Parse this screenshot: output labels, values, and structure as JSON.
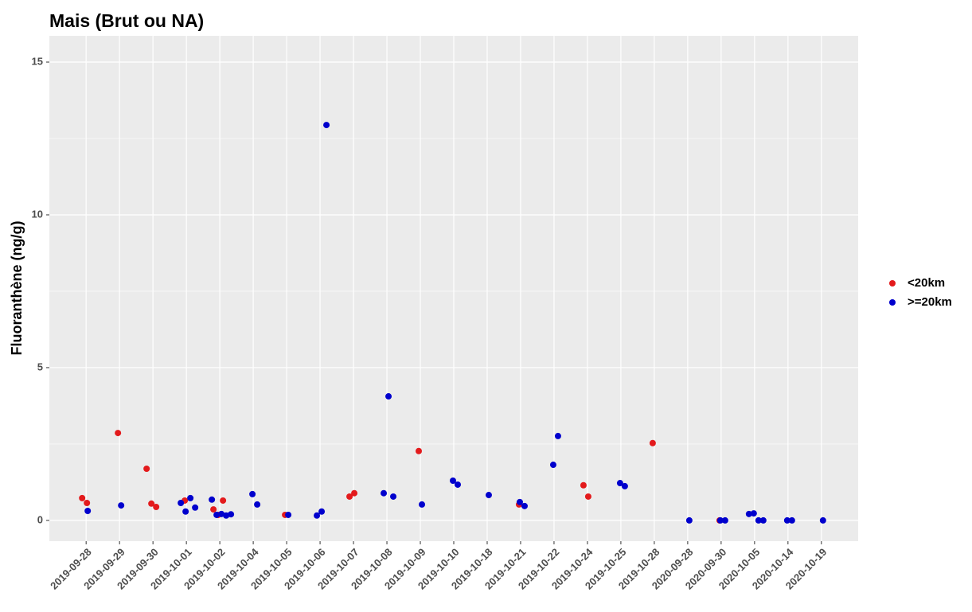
{
  "chart_data": {
    "type": "scatter",
    "title": "Mais (Brut ou NA)",
    "y_label": "Fluoranthène (ng/g)",
    "categories": [
      "2019-09-28",
      "2019-09-29",
      "2019-09-30",
      "2019-10-01",
      "2019-10-02",
      "2019-10-04",
      "2019-10-05",
      "2019-10-06",
      "2019-10-07",
      "2019-10-08",
      "2019-10-09",
      "2019-10-10",
      "2019-10-18",
      "2019-10-21",
      "2019-10-22",
      "2019-10-24",
      "2019-10-25",
      "2019-10-28",
      "2020-09-28",
      "2020-09-30",
      "2020-10-05",
      "2020-10-14",
      "2020-10-19"
    ],
    "ylim": [
      -0.68,
      15.86
    ],
    "yticks": [
      0,
      5,
      10,
      15
    ],
    "grid": true,
    "legend": "right",
    "series": [
      {
        "name": "<20km",
        "color": "#e31a1c",
        "x": [
          "2019-09-28",
          "2019-09-28",
          "2019-09-29",
          "2019-09-30",
          "2019-09-30",
          "2019-09-30",
          "2019-10-01",
          "2019-10-02",
          "2019-10-02",
          "2019-10-02",
          "2019-10-05",
          "2019-10-07",
          "2019-10-07",
          "2019-10-09",
          "2019-10-21",
          "2019-10-24",
          "2019-10-24",
          "2019-10-28",
          "2020-09-30"
        ],
        "values": [
          0.73,
          0.57,
          2.86,
          1.69,
          0.55,
          0.44,
          0.65,
          0.36,
          0.18,
          0.65,
          0.18,
          0.78,
          0.89,
          2.27,
          0.52,
          1.15,
          0.78,
          2.53,
          0
        ]
      },
      {
        "name": ">=20km",
        "color": "#0000cd",
        "x": [
          "2019-09-28",
          "2019-09-29",
          "2019-10-01",
          "2019-10-01",
          "2019-10-01",
          "2019-10-01",
          "2019-10-02",
          "2019-10-02",
          "2019-10-02",
          "2019-10-02",
          "2019-10-02",
          "2019-10-04",
          "2019-10-04",
          "2019-10-05",
          "2019-10-06",
          "2019-10-06",
          "2019-10-06",
          "2019-10-08",
          "2019-10-08",
          "2019-10-08",
          "2019-10-09",
          "2019-10-10",
          "2019-10-10",
          "2019-10-18",
          "2019-10-21",
          "2019-10-21",
          "2019-10-22",
          "2019-10-22",
          "2019-10-25",
          "2019-10-25",
          "2020-09-28",
          "2020-09-30",
          "2020-09-30",
          "2020-10-05",
          "2020-10-05",
          "2020-10-05",
          "2020-10-05",
          "2020-10-14",
          "2020-10-14",
          "2020-10-19"
        ],
        "values": [
          0.31,
          0.49,
          0.57,
          0.29,
          0.73,
          0.42,
          0.68,
          0.18,
          0.21,
          0.16,
          0.2,
          0.86,
          0.52,
          0.18,
          0.16,
          0.29,
          12.94,
          0.89,
          4.06,
          0.78,
          0.52,
          1.3,
          1.17,
          0.83,
          0.6,
          0.47,
          1.82,
          2.76,
          1.22,
          1.12,
          0,
          0,
          0,
          0.21,
          0.23,
          0,
          0,
          0,
          0,
          0
        ]
      }
    ]
  }
}
